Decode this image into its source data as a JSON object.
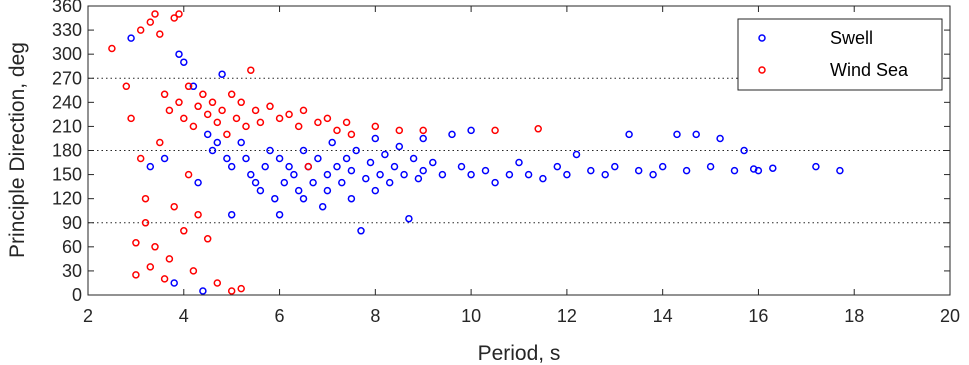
{
  "chart_data": {
    "type": "scatter",
    "title": "",
    "xlabel": "Period, s",
    "ylabel": "Principle Direction, deg",
    "xlim": [
      2,
      20
    ],
    "ylim": [
      0,
      360
    ],
    "xticks": [
      2,
      4,
      6,
      8,
      10,
      12,
      14,
      16,
      18,
      20
    ],
    "yticks": [
      0,
      30,
      60,
      90,
      120,
      150,
      180,
      210,
      240,
      270,
      300,
      330,
      360
    ],
    "reference_lines": [
      90,
      180,
      270
    ],
    "grid": false,
    "legend_position": "top-right",
    "marker": "open-circle",
    "series": [
      {
        "name": "Swell",
        "color": "#0000ff",
        "points": [
          [
            2.9,
            320
          ],
          [
            3.3,
            160
          ],
          [
            3.6,
            170
          ],
          [
            3.8,
            15
          ],
          [
            3.9,
            300
          ],
          [
            4.0,
            290
          ],
          [
            4.2,
            260
          ],
          [
            4.3,
            140
          ],
          [
            4.4,
            5
          ],
          [
            4.5,
            200
          ],
          [
            4.6,
            180
          ],
          [
            4.7,
            190
          ],
          [
            4.8,
            275
          ],
          [
            4.9,
            170
          ],
          [
            5.0,
            160
          ],
          [
            5.0,
            100
          ],
          [
            5.2,
            190
          ],
          [
            5.3,
            170
          ],
          [
            5.4,
            150
          ],
          [
            5.5,
            140
          ],
          [
            5.6,
            130
          ],
          [
            5.7,
            160
          ],
          [
            5.8,
            180
          ],
          [
            5.9,
            120
          ],
          [
            6.0,
            170
          ],
          [
            6.0,
            100
          ],
          [
            6.1,
            140
          ],
          [
            6.2,
            160
          ],
          [
            6.3,
            150
          ],
          [
            6.4,
            130
          ],
          [
            6.5,
            180
          ],
          [
            6.5,
            120
          ],
          [
            6.6,
            160
          ],
          [
            6.7,
            140
          ],
          [
            6.8,
            170
          ],
          [
            6.9,
            110
          ],
          [
            7.0,
            150
          ],
          [
            7.0,
            130
          ],
          [
            7.1,
            190
          ],
          [
            7.2,
            160
          ],
          [
            7.3,
            140
          ],
          [
            7.4,
            170
          ],
          [
            7.5,
            120
          ],
          [
            7.5,
            155
          ],
          [
            7.6,
            180
          ],
          [
            7.7,
            80
          ],
          [
            7.8,
            145
          ],
          [
            7.9,
            165
          ],
          [
            8.0,
            195
          ],
          [
            8.0,
            130
          ],
          [
            8.1,
            150
          ],
          [
            8.2,
            175
          ],
          [
            8.3,
            140
          ],
          [
            8.4,
            160
          ],
          [
            8.5,
            185
          ],
          [
            8.6,
            150
          ],
          [
            8.7,
            95
          ],
          [
            8.8,
            170
          ],
          [
            8.9,
            145
          ],
          [
            9.0,
            195
          ],
          [
            9.0,
            155
          ],
          [
            9.2,
            165
          ],
          [
            9.4,
            150
          ],
          [
            9.6,
            200
          ],
          [
            9.8,
            160
          ],
          [
            10.0,
            150
          ],
          [
            10.0,
            205
          ],
          [
            10.3,
            155
          ],
          [
            10.5,
            140
          ],
          [
            10.8,
            150
          ],
          [
            11.0,
            165
          ],
          [
            11.2,
            150
          ],
          [
            11.5,
            145
          ],
          [
            11.8,
            160
          ],
          [
            12.0,
            150
          ],
          [
            12.2,
            175
          ],
          [
            12.5,
            155
          ],
          [
            12.8,
            150
          ],
          [
            13.0,
            160
          ],
          [
            13.3,
            200
          ],
          [
            13.5,
            155
          ],
          [
            13.8,
            150
          ],
          [
            14.0,
            160
          ],
          [
            14.3,
            200
          ],
          [
            14.5,
            155
          ],
          [
            14.7,
            200
          ],
          [
            15.0,
            160
          ],
          [
            15.2,
            195
          ],
          [
            15.5,
            155
          ],
          [
            15.7,
            180
          ],
          [
            15.9,
            157
          ],
          [
            16.0,
            155
          ],
          [
            16.3,
            158
          ],
          [
            17.2,
            160
          ],
          [
            17.7,
            155
          ]
        ]
      },
      {
        "name": "Wind Sea",
        "color": "#ff0000",
        "points": [
          [
            2.5,
            307
          ],
          [
            2.8,
            260
          ],
          [
            2.9,
            220
          ],
          [
            3.0,
            65
          ],
          [
            3.0,
            25
          ],
          [
            3.1,
            330
          ],
          [
            3.1,
            170
          ],
          [
            3.2,
            120
          ],
          [
            3.2,
            90
          ],
          [
            3.3,
            340
          ],
          [
            3.3,
            35
          ],
          [
            3.4,
            350
          ],
          [
            3.4,
            60
          ],
          [
            3.5,
            325
          ],
          [
            3.5,
            190
          ],
          [
            3.6,
            250
          ],
          [
            3.6,
            20
          ],
          [
            3.7,
            230
          ],
          [
            3.7,
            45
          ],
          [
            3.8,
            345
          ],
          [
            3.8,
            110
          ],
          [
            3.9,
            350
          ],
          [
            3.9,
            240
          ],
          [
            4.0,
            220
          ],
          [
            4.0,
            80
          ],
          [
            4.1,
            260
          ],
          [
            4.1,
            150
          ],
          [
            4.2,
            210
          ],
          [
            4.2,
            30
          ],
          [
            4.3,
            235
          ],
          [
            4.3,
            100
          ],
          [
            4.4,
            250
          ],
          [
            4.5,
            225
          ],
          [
            4.5,
            70
          ],
          [
            4.6,
            240
          ],
          [
            4.7,
            215
          ],
          [
            4.7,
            15
          ],
          [
            4.8,
            230
          ],
          [
            4.9,
            200
          ],
          [
            5.0,
            250
          ],
          [
            5.0,
            5
          ],
          [
            5.1,
            220
          ],
          [
            5.2,
            240
          ],
          [
            5.2,
            8
          ],
          [
            5.3,
            210
          ],
          [
            5.4,
            280
          ],
          [
            5.5,
            230
          ],
          [
            5.6,
            215
          ],
          [
            5.8,
            235
          ],
          [
            6.0,
            220
          ],
          [
            6.2,
            225
          ],
          [
            6.4,
            210
          ],
          [
            6.5,
            230
          ],
          [
            6.6,
            160
          ],
          [
            6.8,
            215
          ],
          [
            7.0,
            220
          ],
          [
            7.2,
            205
          ],
          [
            7.4,
            215
          ],
          [
            7.5,
            200
          ],
          [
            8.0,
            210
          ],
          [
            8.5,
            205
          ],
          [
            9.0,
            205
          ],
          [
            10.5,
            205
          ],
          [
            11.4,
            207
          ]
        ]
      }
    ]
  }
}
